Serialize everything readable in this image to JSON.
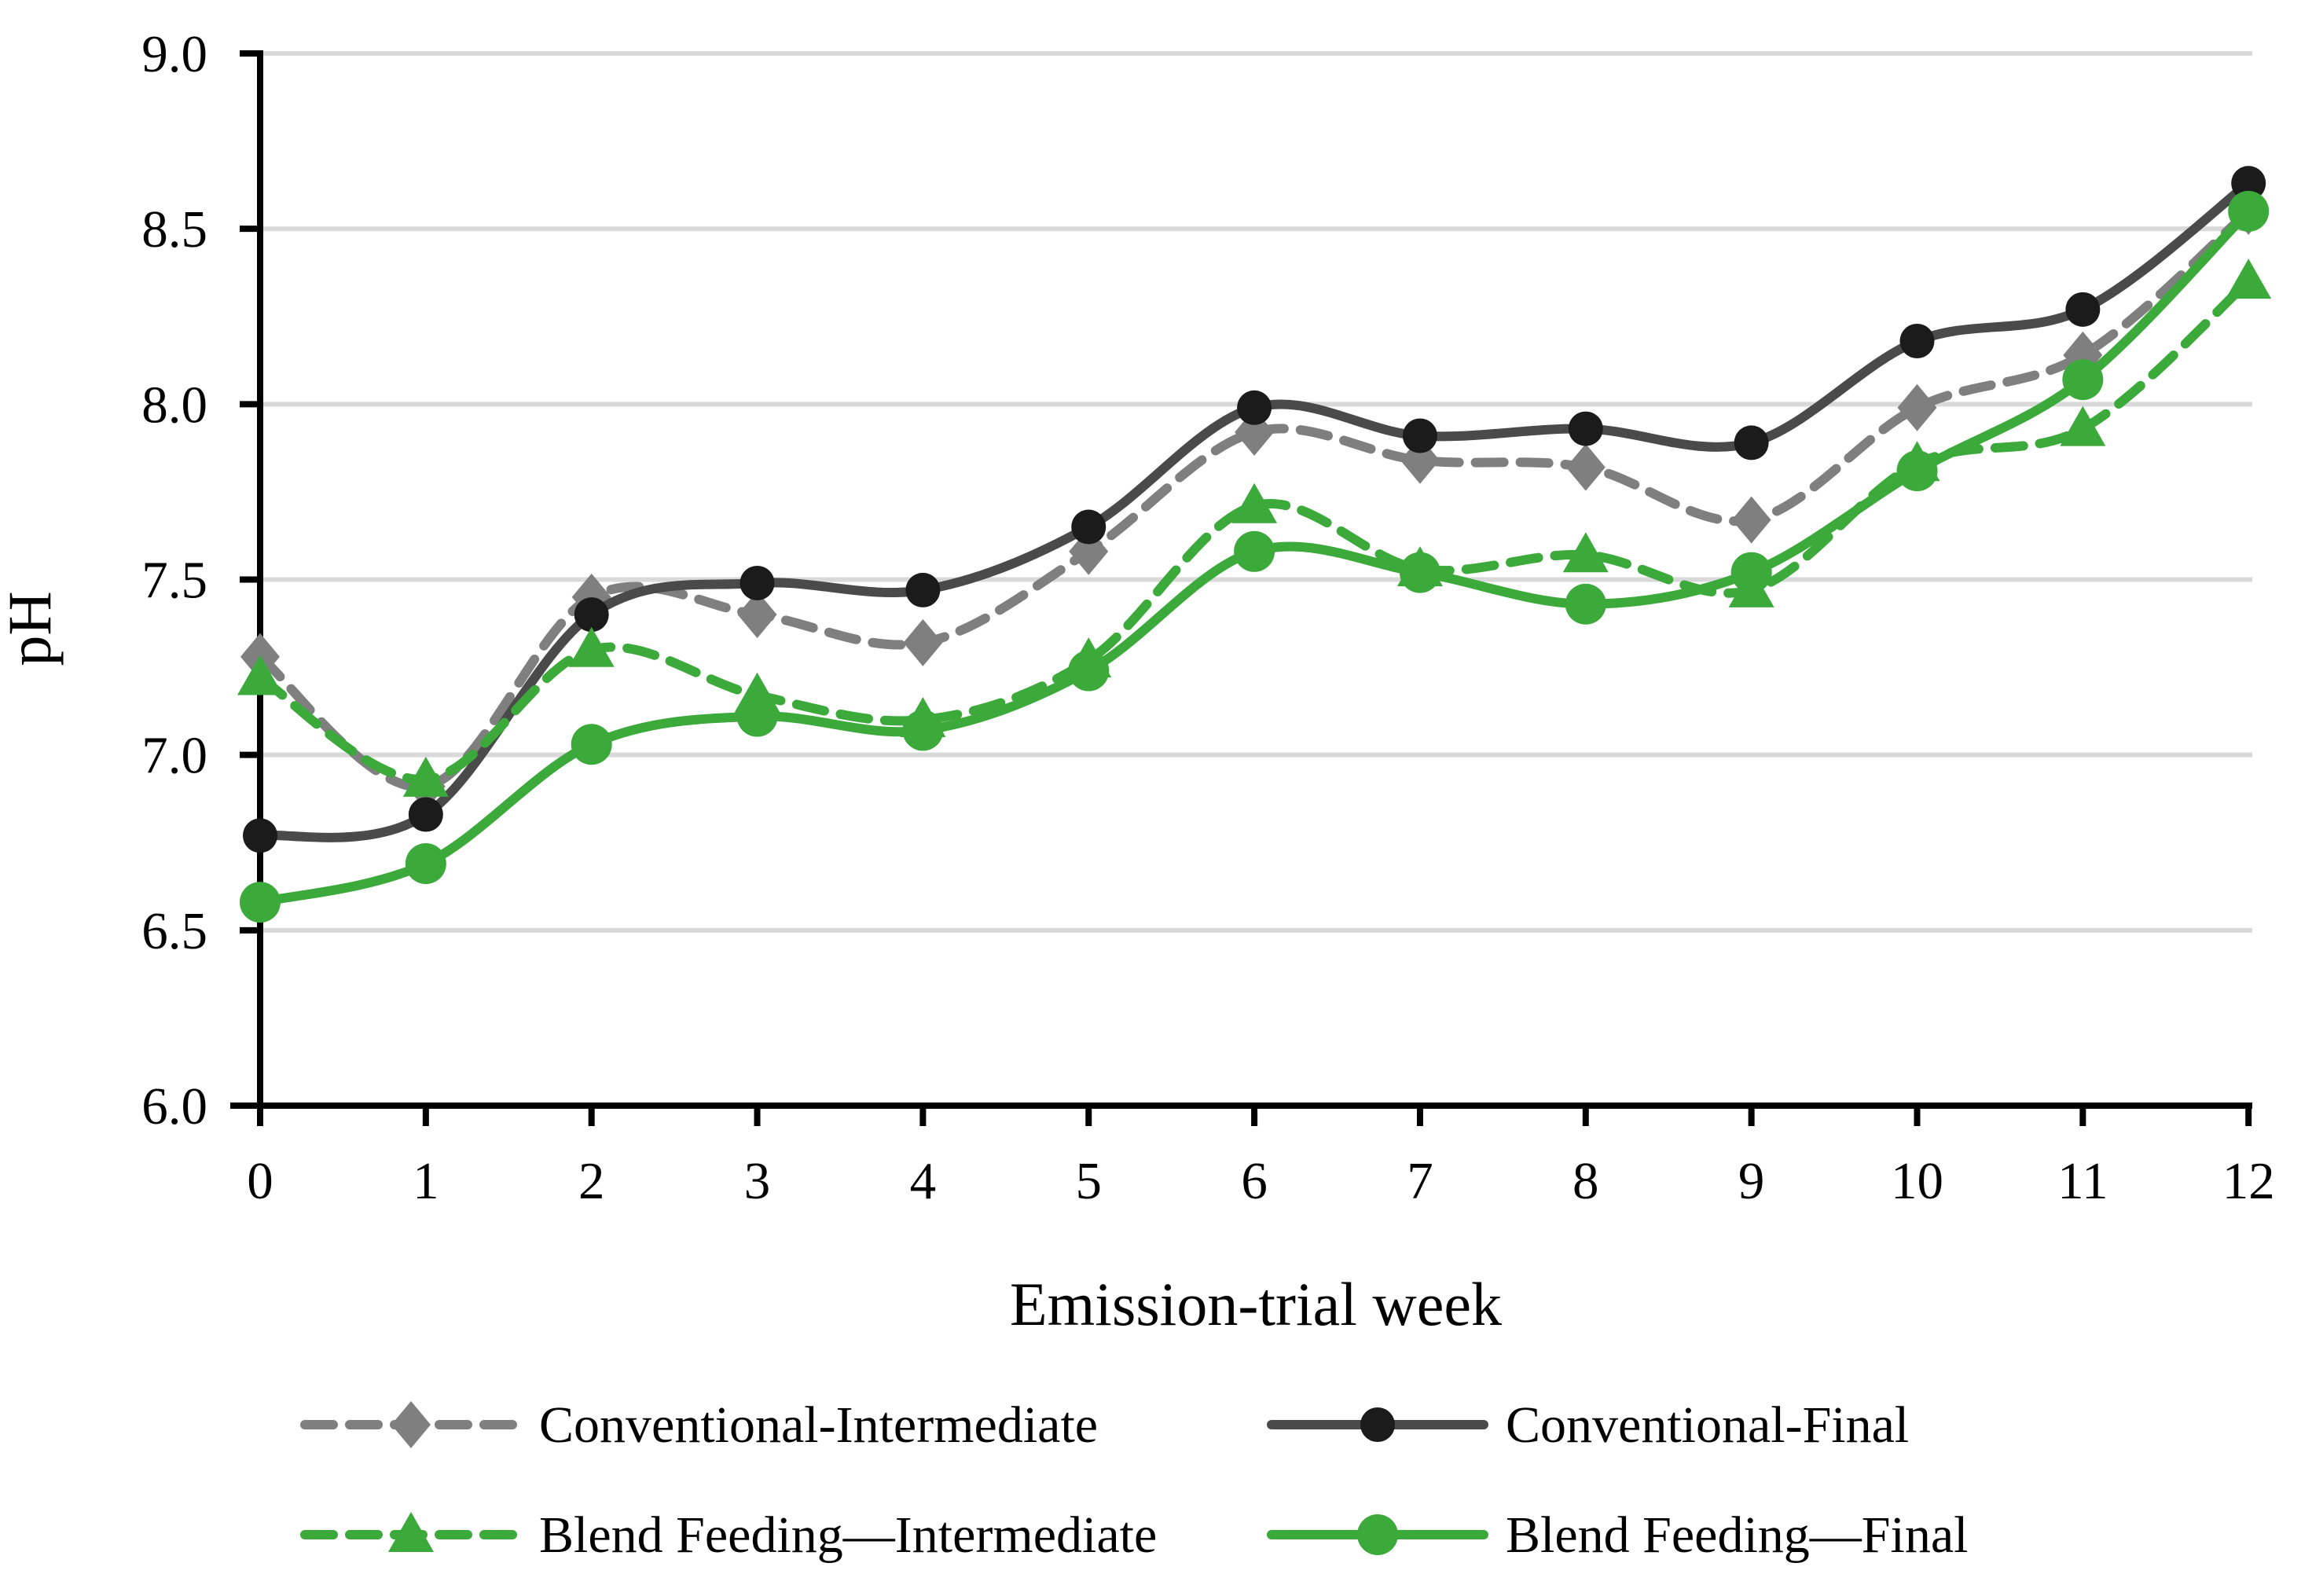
{
  "chart_data": {
    "type": "line",
    "title": "",
    "xlabel": "Emission-trial week",
    "ylabel": "pH",
    "x": [
      0,
      1,
      2,
      3,
      4,
      5,
      6,
      7,
      8,
      9,
      10,
      11,
      12
    ],
    "x_tick_labels": [
      "0",
      "1",
      "2",
      "3",
      "4",
      "5",
      "6",
      "7",
      "8",
      "9",
      "10",
      "11",
      "12"
    ],
    "y_tick_labels": [
      "6.0",
      "6.5",
      "7.0",
      "7.5",
      "8.0",
      "8.5",
      "9.0"
    ],
    "y_ticks": [
      6.0,
      6.5,
      7.0,
      7.5,
      8.0,
      8.5,
      9.0
    ],
    "y_gridlines": [
      6.5,
      7.0,
      7.5,
      8.0,
      8.5,
      9.0
    ],
    "ylim": [
      6.0,
      9.0
    ],
    "xlim": [
      0,
      12
    ],
    "grid": "horizontal",
    "legend_position": "bottom",
    "colors": {
      "green": "#3ca93b",
      "gray": "#7f7f7f",
      "dark_line": "#4a4a4a",
      "dark_marker": "#1b1b1b",
      "gridline": "#d9d9d9",
      "axis": "#000000"
    },
    "series": [
      {
        "name": "Conventional-Intermediate",
        "slug": "conventional-intermediate",
        "line_color": "#7f7f7f",
        "marker_color": "#7f7f7f",
        "style": "dashed",
        "marker": "diamond",
        "values": [
          7.28,
          6.91,
          7.45,
          7.4,
          7.32,
          7.58,
          7.92,
          7.84,
          7.82,
          7.67,
          7.99,
          8.14,
          8.55
        ]
      },
      {
        "name": "Conventional-Final",
        "slug": "conventional-final",
        "line_color": "#4a4a4a",
        "marker_color": "#1b1b1b",
        "style": "solid",
        "marker": "circle",
        "values": [
          6.77,
          6.83,
          7.4,
          7.49,
          7.47,
          7.65,
          7.99,
          7.91,
          7.93,
          7.89,
          8.18,
          8.27,
          8.63
        ]
      },
      {
        "name": "Blend Feeding—Intermediate",
        "slug": "blend-feeding-intermediate",
        "line_color": "#3ca93b",
        "marker_color": "#3ca93b",
        "style": "dashed",
        "marker": "triangle",
        "values": [
          7.22,
          6.93,
          7.3,
          7.17,
          7.1,
          7.27,
          7.71,
          7.53,
          7.57,
          7.47,
          7.83,
          7.93,
          8.35
        ]
      },
      {
        "name": "Blend Feeding—Final",
        "slug": "blend-feeding-final",
        "line_color": "#3ca93b",
        "marker_color": "#3ca93b",
        "style": "solid",
        "marker": "circle",
        "values": [
          6.58,
          6.69,
          7.03,
          7.11,
          7.07,
          7.24,
          7.58,
          7.52,
          7.43,
          7.52,
          7.81,
          8.07,
          8.55
        ]
      }
    ]
  }
}
